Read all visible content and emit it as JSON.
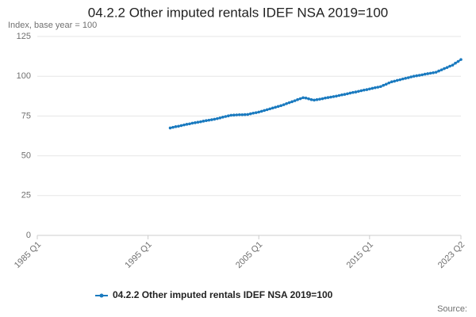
{
  "chart_data": {
    "type": "line",
    "title": "04.2.2 Other imputed rentals IDEF NSA 2019=100",
    "y_label": "Index, base year = 100",
    "source": "Source:",
    "categories": [
      "1985 Q1",
      null,
      null,
      null,
      null,
      null,
      null,
      null,
      null,
      null,
      null,
      null,
      null,
      null,
      null,
      null,
      null,
      null,
      null,
      null,
      null,
      null,
      null,
      null,
      null,
      null,
      null,
      null,
      null,
      null,
      null,
      null,
      null,
      null,
      null,
      null,
      null,
      null,
      null,
      null,
      "1995 Q1",
      null,
      null,
      null,
      null,
      null,
      null,
      null,
      null,
      null,
      null,
      null,
      null,
      null,
      null,
      null,
      null,
      null,
      null,
      null,
      null,
      null,
      null,
      null,
      null,
      null,
      null,
      null,
      null,
      null,
      null,
      null,
      null,
      null,
      null,
      null,
      null,
      null,
      null,
      null,
      "2005 Q1",
      null,
      null,
      null,
      null,
      null,
      null,
      null,
      null,
      null,
      null,
      null,
      null,
      null,
      null,
      null,
      null,
      null,
      null,
      null,
      null,
      null,
      null,
      null,
      null,
      null,
      null,
      null,
      null,
      null,
      null,
      null,
      null,
      null,
      null,
      null,
      null,
      null,
      null,
      null,
      "2015 Q1",
      null,
      null,
      null,
      null,
      null,
      null,
      null,
      null,
      null,
      null,
      null,
      null,
      null,
      null,
      null,
      null,
      null,
      null,
      null,
      null,
      null,
      null,
      null,
      null,
      null,
      null,
      null,
      null,
      null,
      null,
      null,
      null,
      "2023 Q2"
    ],
    "series": [
      {
        "name": "04.2.2 Other imputed rentals IDEF NSA 2019=100",
        "color": "#1a7abf",
        "values": [
          null,
          null,
          null,
          null,
          null,
          null,
          null,
          null,
          null,
          null,
          null,
          null,
          null,
          null,
          null,
          null,
          null,
          null,
          null,
          null,
          null,
          null,
          null,
          null,
          null,
          null,
          null,
          null,
          null,
          null,
          null,
          null,
          null,
          null,
          null,
          null,
          null,
          null,
          null,
          null,
          null,
          null,
          null,
          null,
          null,
          null,
          null,
          null,
          67.5,
          67.9,
          68.3,
          68.6,
          69.0,
          69.4,
          69.8,
          70.1,
          70.5,
          70.8,
          71.1,
          71.4,
          71.8,
          72.1,
          72.4,
          72.7,
          73.0,
          73.4,
          73.8,
          74.3,
          74.7,
          75.1,
          75.5,
          75.6,
          75.7,
          75.8,
          75.8,
          75.9,
          76.0,
          76.4,
          76.8,
          77.1,
          77.5,
          78.0,
          78.5,
          79.0,
          79.5,
          80.0,
          80.5,
          81.0,
          81.5,
          82.1,
          82.8,
          83.4,
          84.0,
          84.6,
          85.3,
          85.9,
          86.5,
          86.3,
          85.8,
          85.3,
          85.0,
          85.3,
          85.6,
          85.9,
          86.3,
          86.6,
          86.9,
          87.2,
          87.5,
          87.9,
          88.3,
          88.6,
          89.0,
          89.4,
          89.8,
          90.1,
          90.5,
          90.9,
          91.3,
          91.6,
          92.0,
          92.4,
          92.8,
          93.1,
          93.5,
          94.3,
          95.0,
          95.8,
          96.5,
          96.9,
          97.4,
          97.8,
          98.3,
          98.7,
          99.1,
          99.6,
          100.0,
          100.3,
          100.6,
          100.9,
          101.3,
          101.6,
          101.9,
          102.2,
          102.5,
          103.3,
          104.0,
          104.8,
          105.5,
          106.3,
          107.0,
          108.2,
          109.3,
          110.5
        ]
      }
    ],
    "ylim": [
      0,
      125
    ],
    "yticks": [
      0,
      25,
      50,
      75,
      100,
      125
    ],
    "grid": true,
    "legend": "bottom"
  }
}
